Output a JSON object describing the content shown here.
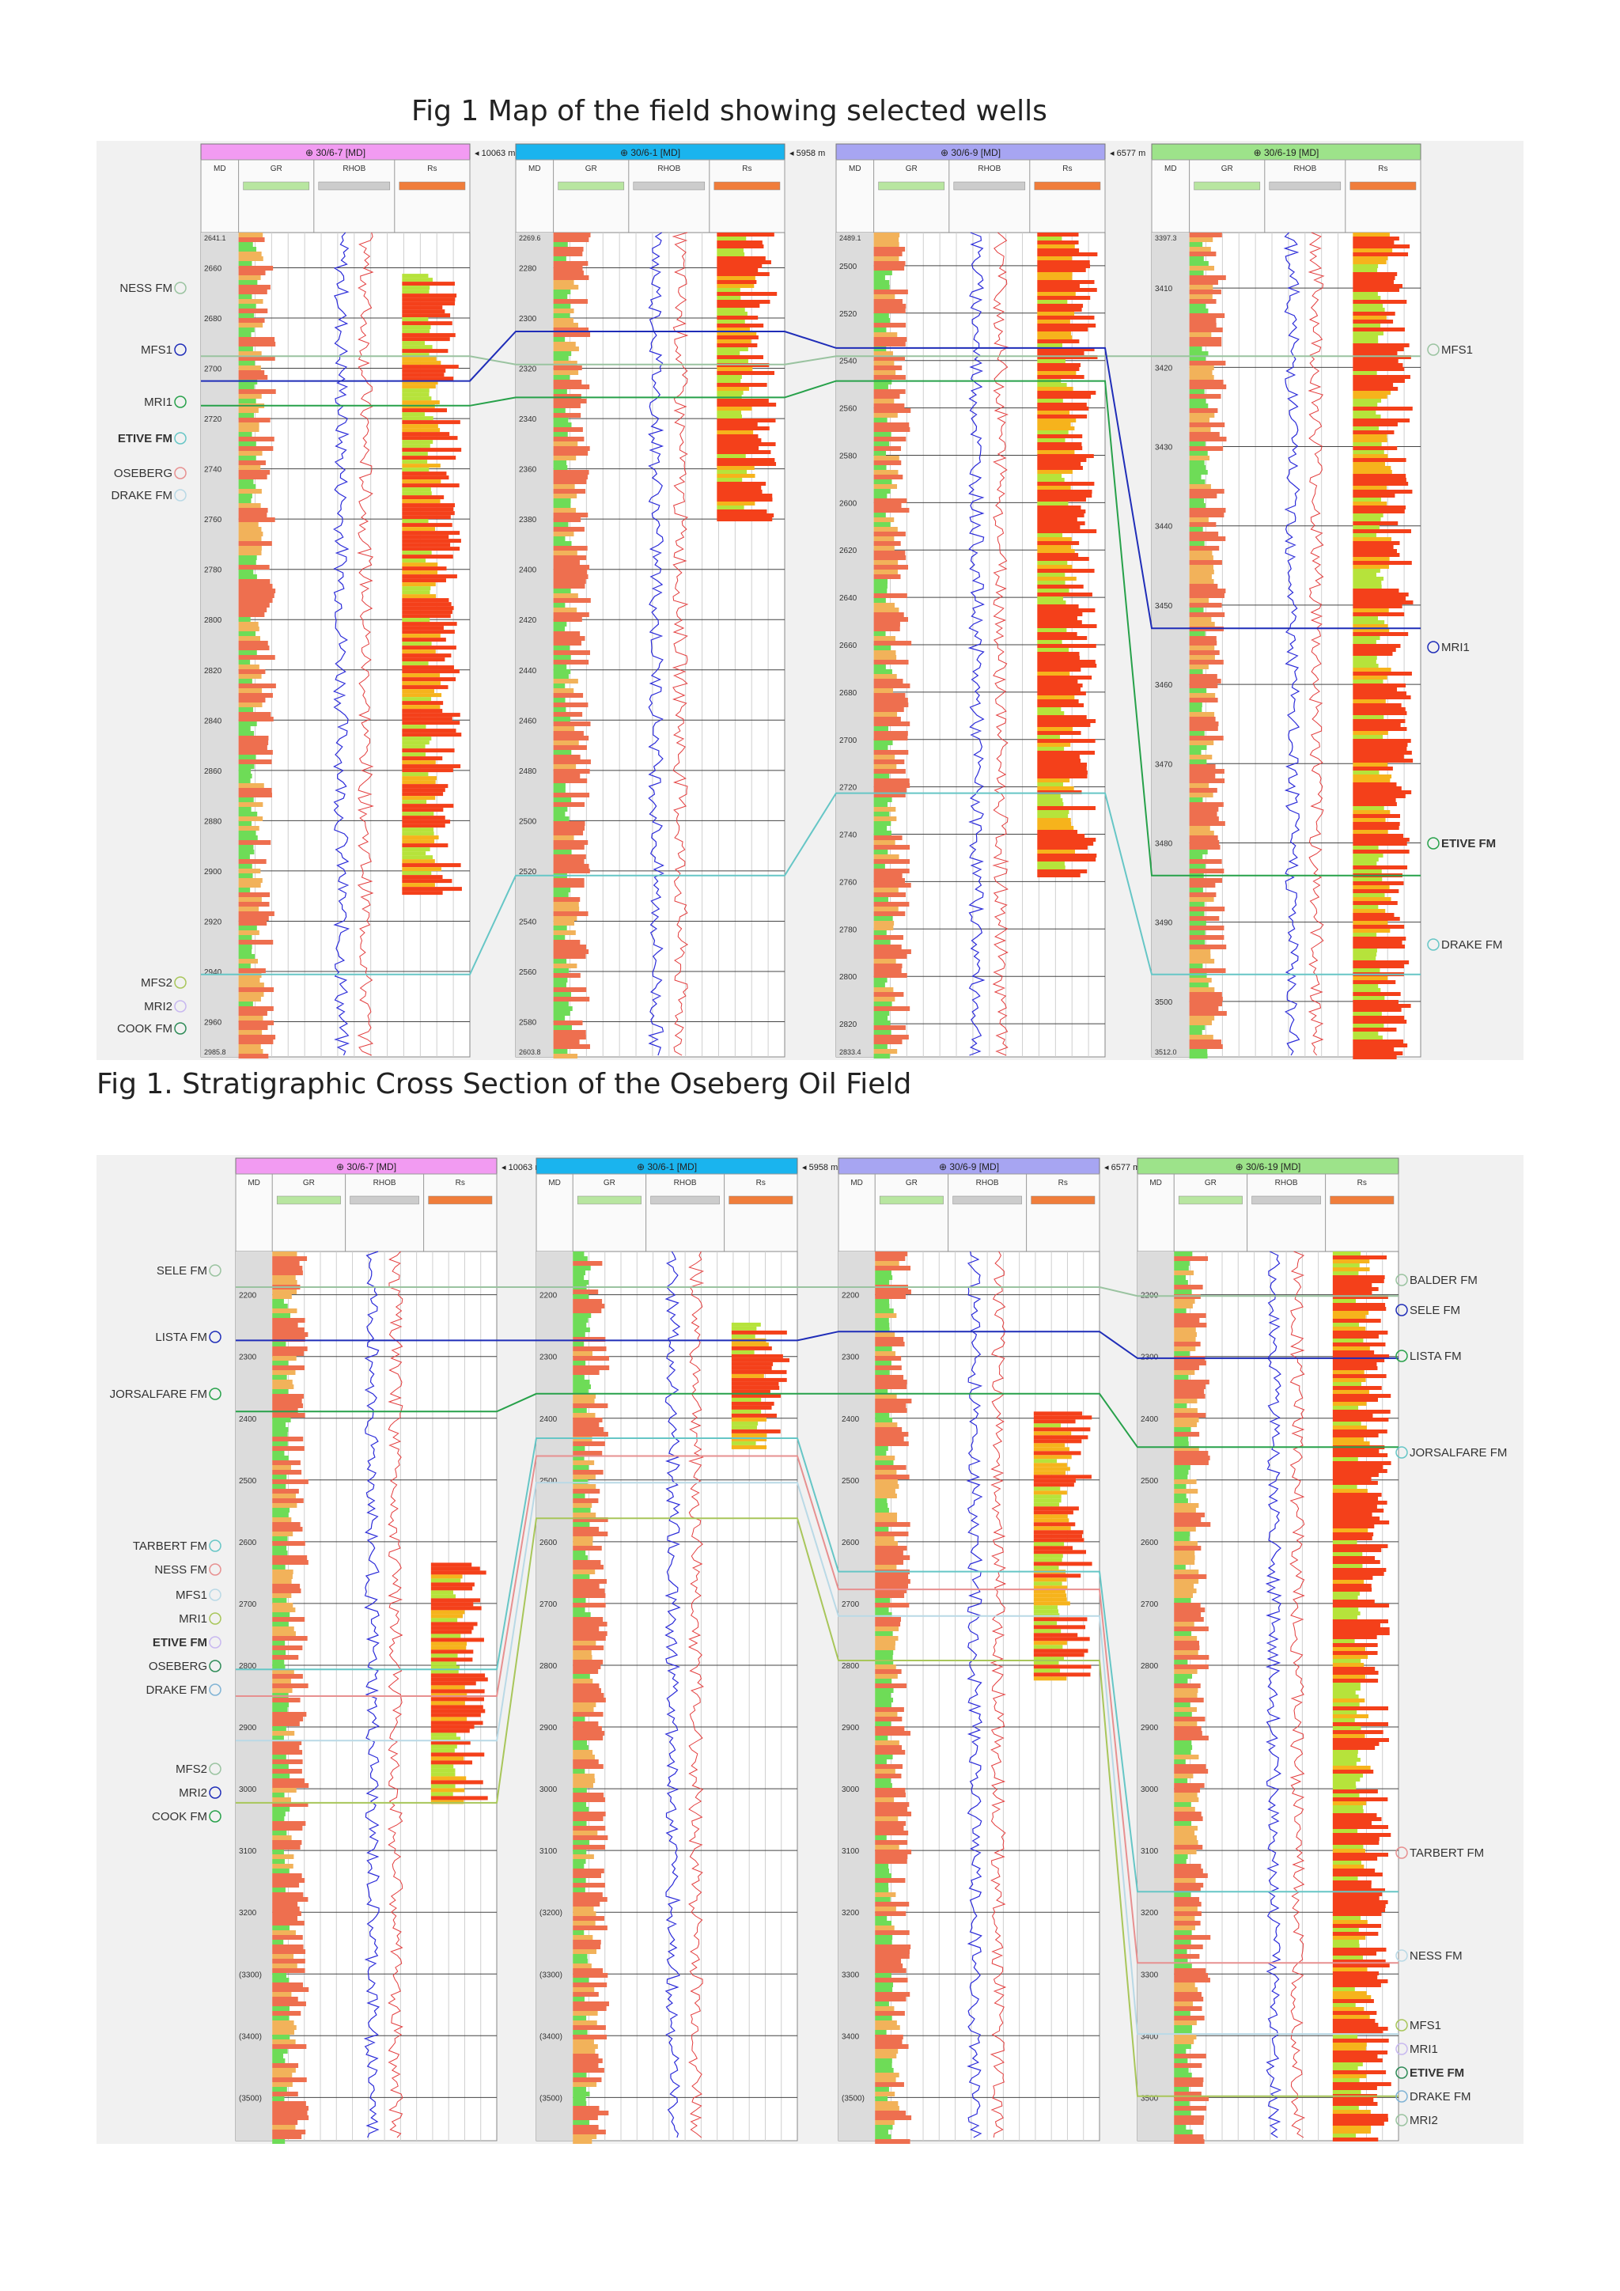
{
  "captions": {
    "top": "Fig 1 Map of the field showing selected wells",
    "bottom": "Fig 1. Stratigraphic Cross Section of the Oseberg Oil Field"
  },
  "colors": {
    "panel_bg": "#f1f1f1",
    "well_colors": [
      "#f29bf2",
      "#1ab4ee",
      "#a7a5f2",
      "#9de38a"
    ],
    "gr_fill_high": "#ee6f4f",
    "gr_fill_low": "#6edc57",
    "rhob_line": "#2b2bd9",
    "nphi_line": "#e33d3d",
    "rs_fill": "#f4401a"
  },
  "column_headers": [
    "MD",
    "GR",
    "RHOB",
    "Rs"
  ],
  "section1": {
    "wells": [
      {
        "name": "30/6-7 [MD]",
        "distance": "10063 m",
        "depth_ticks": [
          "2660",
          "2680",
          "2700",
          "2720",
          "2740",
          "2760",
          "2780",
          "2800",
          "2820",
          "2840",
          "2860",
          "2880",
          "2900",
          "2920",
          "2940",
          "2960"
        ],
        "top_depth": "2641.1",
        "bottom_depth": "2985.8"
      },
      {
        "name": "30/6-1 [MD]",
        "distance": "5958 m",
        "depth_ticks": [
          "2280",
          "2300",
          "2320",
          "2340",
          "2360",
          "2380",
          "2400",
          "2420",
          "2440",
          "2460",
          "2480",
          "2500",
          "2520",
          "2540",
          "2560",
          "2580"
        ],
        "top_depth": "2269.6",
        "bottom_depth": "2603.8"
      },
      {
        "name": "30/6-9 [MD]",
        "distance": "6577 m",
        "depth_ticks": [
          "2500",
          "2520",
          "2540",
          "2560",
          "2580",
          "2600",
          "2620",
          "2640",
          "2660",
          "2680",
          "2700",
          "2720",
          "2740",
          "2760",
          "2780",
          "2800",
          "2820"
        ],
        "top_depth": "2489.1",
        "bottom_depth": "2833.4"
      },
      {
        "name": "30/6-19 [MD]",
        "distance": "",
        "depth_ticks": [
          "3410",
          "3420",
          "3430",
          "3440",
          "3450",
          "3460",
          "3470",
          "3480",
          "3490",
          "3500"
        ],
        "top_depth": "3397.3",
        "bottom_depth": "3512.0"
      }
    ],
    "left_markers": [
      "NESS FM",
      "MFS1",
      "MRI1",
      "ETIVE FM",
      "OSEBERG",
      "DRAKE FM",
      "MFS2",
      "MRI2",
      "COOK FM"
    ],
    "right_markers": [
      "MFS1",
      "MRI1",
      "ETIVE FM",
      "DRAKE FM"
    ]
  },
  "section2": {
    "wells": [
      {
        "name": "30/6-7 [MD]",
        "distance": "10063 m",
        "depth_ticks": [
          "2200",
          "2300",
          "2400",
          "2500",
          "2600",
          "2700",
          "2800",
          "2900",
          "3000",
          "3100",
          "3200",
          "(3300)",
          "(3400)",
          "(3500)"
        ]
      },
      {
        "name": "30/6-1 [MD]",
        "distance": "5958 m",
        "depth_ticks": [
          "2200",
          "2300",
          "2400",
          "2500",
          "2600",
          "2700",
          "2800",
          "2900",
          "3000",
          "3100",
          "(3200)",
          "(3300)",
          "(3400)",
          "(3500)"
        ]
      },
      {
        "name": "30/6-9 [MD]",
        "distance": "6577 m",
        "depth_ticks": [
          "2200",
          "2300",
          "2400",
          "2500",
          "2600",
          "2700",
          "2800",
          "2900",
          "3000",
          "3100",
          "3200",
          "3300",
          "3400",
          "(3500)"
        ]
      },
      {
        "name": "30/6-19 [MD]",
        "distance": "",
        "depth_ticks": [
          "2200",
          "2300",
          "2400",
          "2500",
          "2600",
          "2700",
          "2800",
          "2900",
          "3000",
          "3100",
          "3200",
          "3300",
          "3400",
          "3500"
        ]
      }
    ],
    "left_markers": [
      "SELE FM",
      "LISTA FM",
      "JORSALFARE FM",
      "TARBERT FM",
      "NESS FM",
      "MFS1",
      "MRI1",
      "ETIVE FM",
      "OSEBERG",
      "DRAKE FM",
      "MFS2",
      "MRI2",
      "COOK FM"
    ],
    "right_markers": [
      "BALDER FM",
      "SELE FM",
      "LISTA FM",
      "JORSALFARE FM",
      "TARBERT FM",
      "NESS FM",
      "MFS1",
      "MRI1",
      "ETIVE FM",
      "DRAKE FM",
      "MRI2"
    ]
  }
}
